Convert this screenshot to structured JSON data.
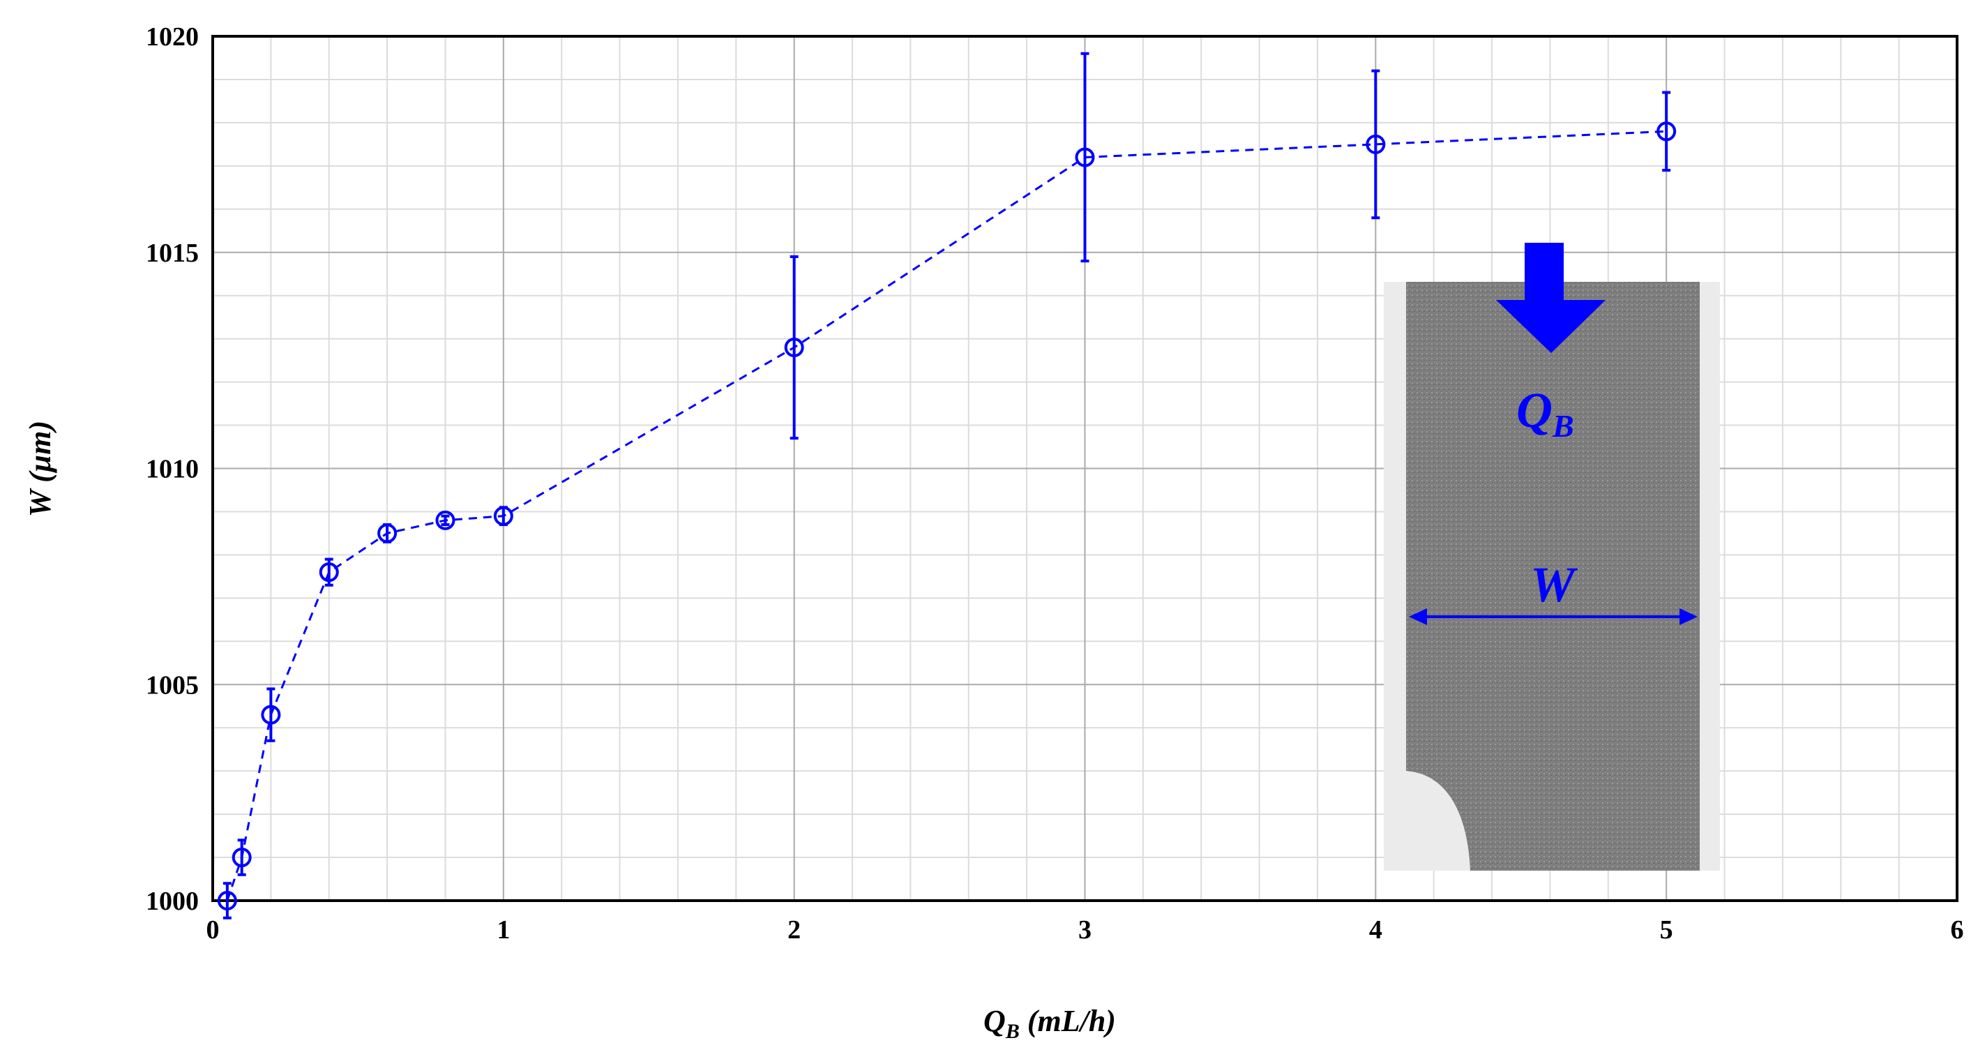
{
  "chart_data": {
    "type": "scatter",
    "x": [
      0.05,
      0.1,
      0.2,
      0.4,
      0.6,
      0.8,
      1.0,
      2.0,
      3.0,
      4.0,
      5.0
    ],
    "y": [
      1000.0,
      1001.0,
      1004.3,
      1007.6,
      1008.5,
      1008.8,
      1008.9,
      1012.8,
      1017.2,
      1017.5,
      1017.8
    ],
    "yerr": [
      0.4,
      0.4,
      0.6,
      0.3,
      0.2,
      0.1,
      0.2,
      2.1,
      2.4,
      1.7,
      0.9
    ],
    "line_style": "dashed",
    "marker": "open-circle",
    "color": "#0000ff",
    "xlim": [
      0,
      6
    ],
    "ylim": [
      1000,
      1020
    ],
    "xticks": [
      0,
      1,
      2,
      3,
      4,
      5,
      6
    ],
    "yticks": [
      1000,
      1005,
      1010,
      1015,
      1020
    ],
    "x_minor_step": 0.2,
    "y_minor_step": 1,
    "grid": true,
    "xlabel": "Q",
    "xlabel_sub": "B",
    "xlabel_unit": " (mL/h)",
    "ylabel": "W (µm)",
    "inset": {
      "flow_label": "Q",
      "flow_label_sub": "B",
      "width_label": "W",
      "arrow_color": "#0000ff",
      "image_color": "#7f7f7f"
    }
  }
}
